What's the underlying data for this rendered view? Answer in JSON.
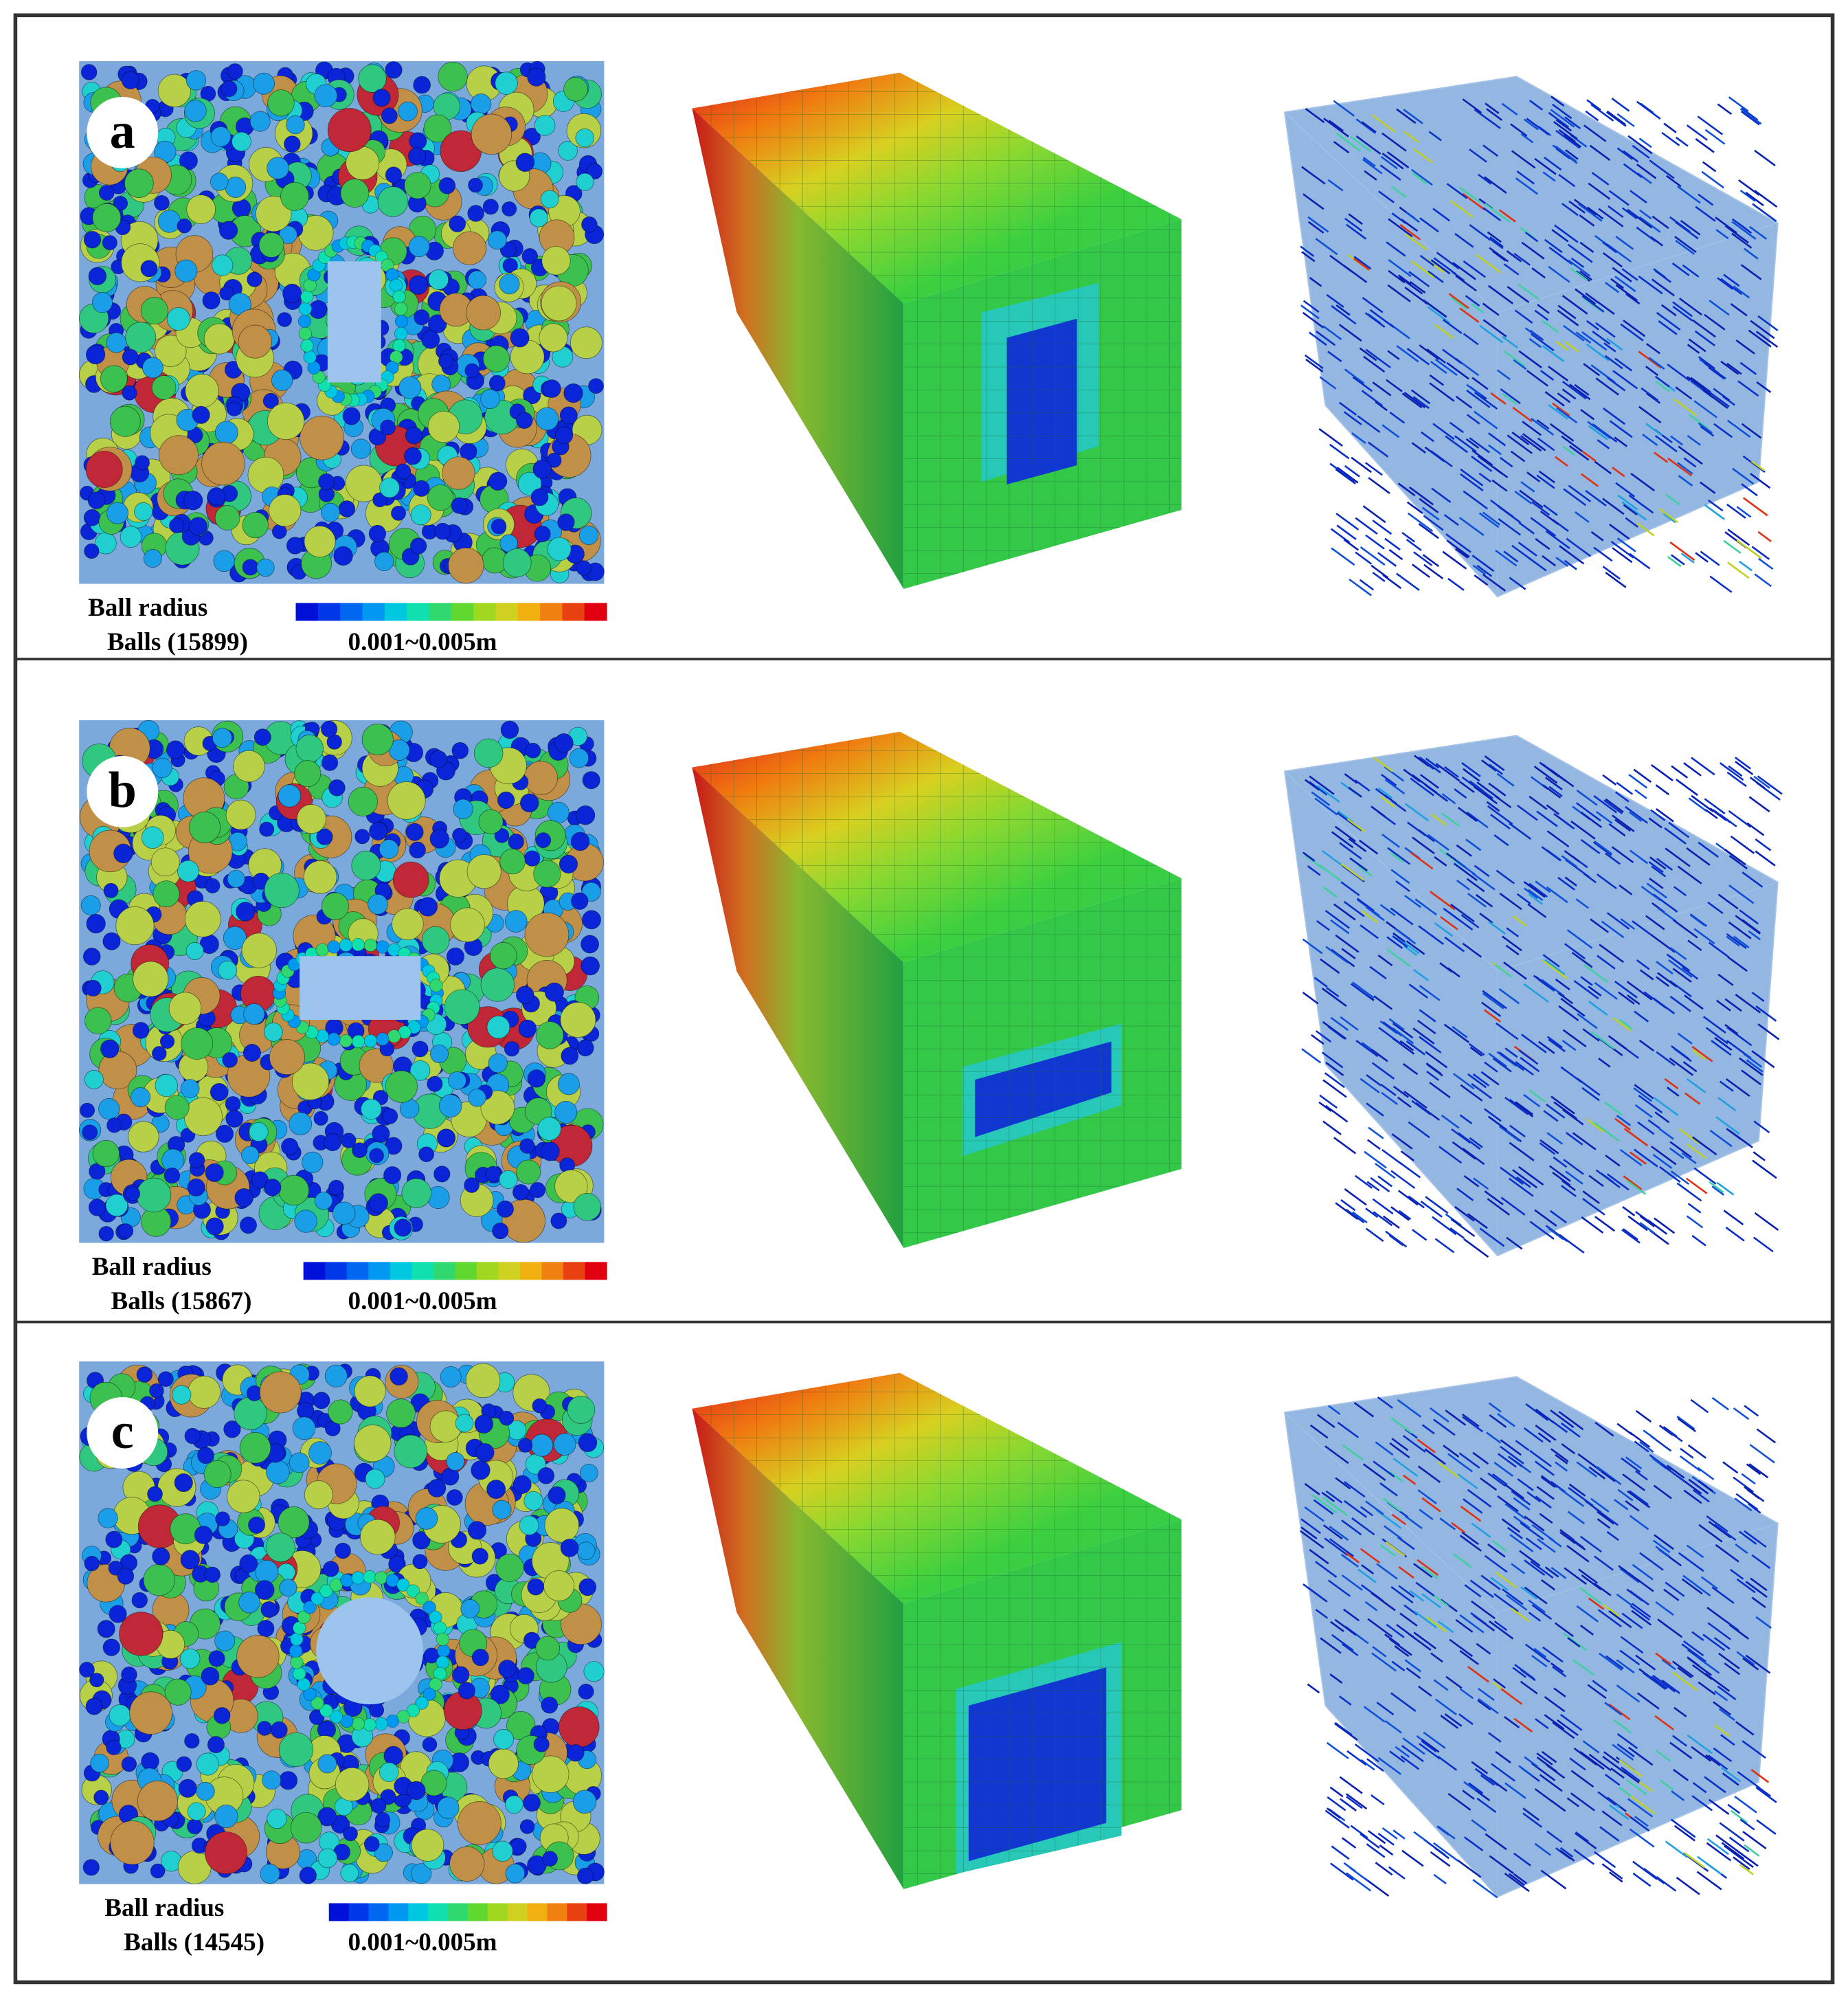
{
  "rows": [
    {
      "label": "a",
      "legend_title": "Ball radius",
      "balls": "Balls (15899)",
      "range": "0.001~0.005m"
    },
    {
      "label": "b",
      "legend_title": "Ball radius",
      "balls": "Balls (15867)",
      "range": "0.001~0.005m"
    },
    {
      "label": "c",
      "legend_title": "Ball radius",
      "balls": "Balls (14545)",
      "range": "0.001~0.005m"
    }
  ]
}
